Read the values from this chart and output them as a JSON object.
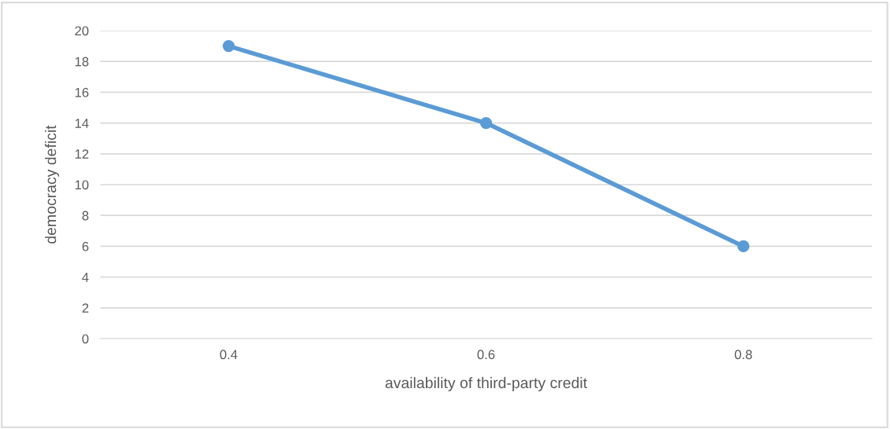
{
  "chart_data": {
    "type": "line",
    "xlabel": "availability of third-party credit",
    "ylabel": "democracy deficit",
    "categories": [
      "0.4",
      "0.6",
      "0.8"
    ],
    "series": [
      {
        "color": "#5b9bd5",
        "values": [
          19,
          14,
          6
        ]
      }
    ],
    "ylim": [
      0,
      20
    ],
    "yticks": [
      0,
      2,
      4,
      6,
      8,
      10,
      12,
      14,
      16,
      18,
      20
    ],
    "grid": "y",
    "marker": "circle",
    "line_style": "solid"
  }
}
